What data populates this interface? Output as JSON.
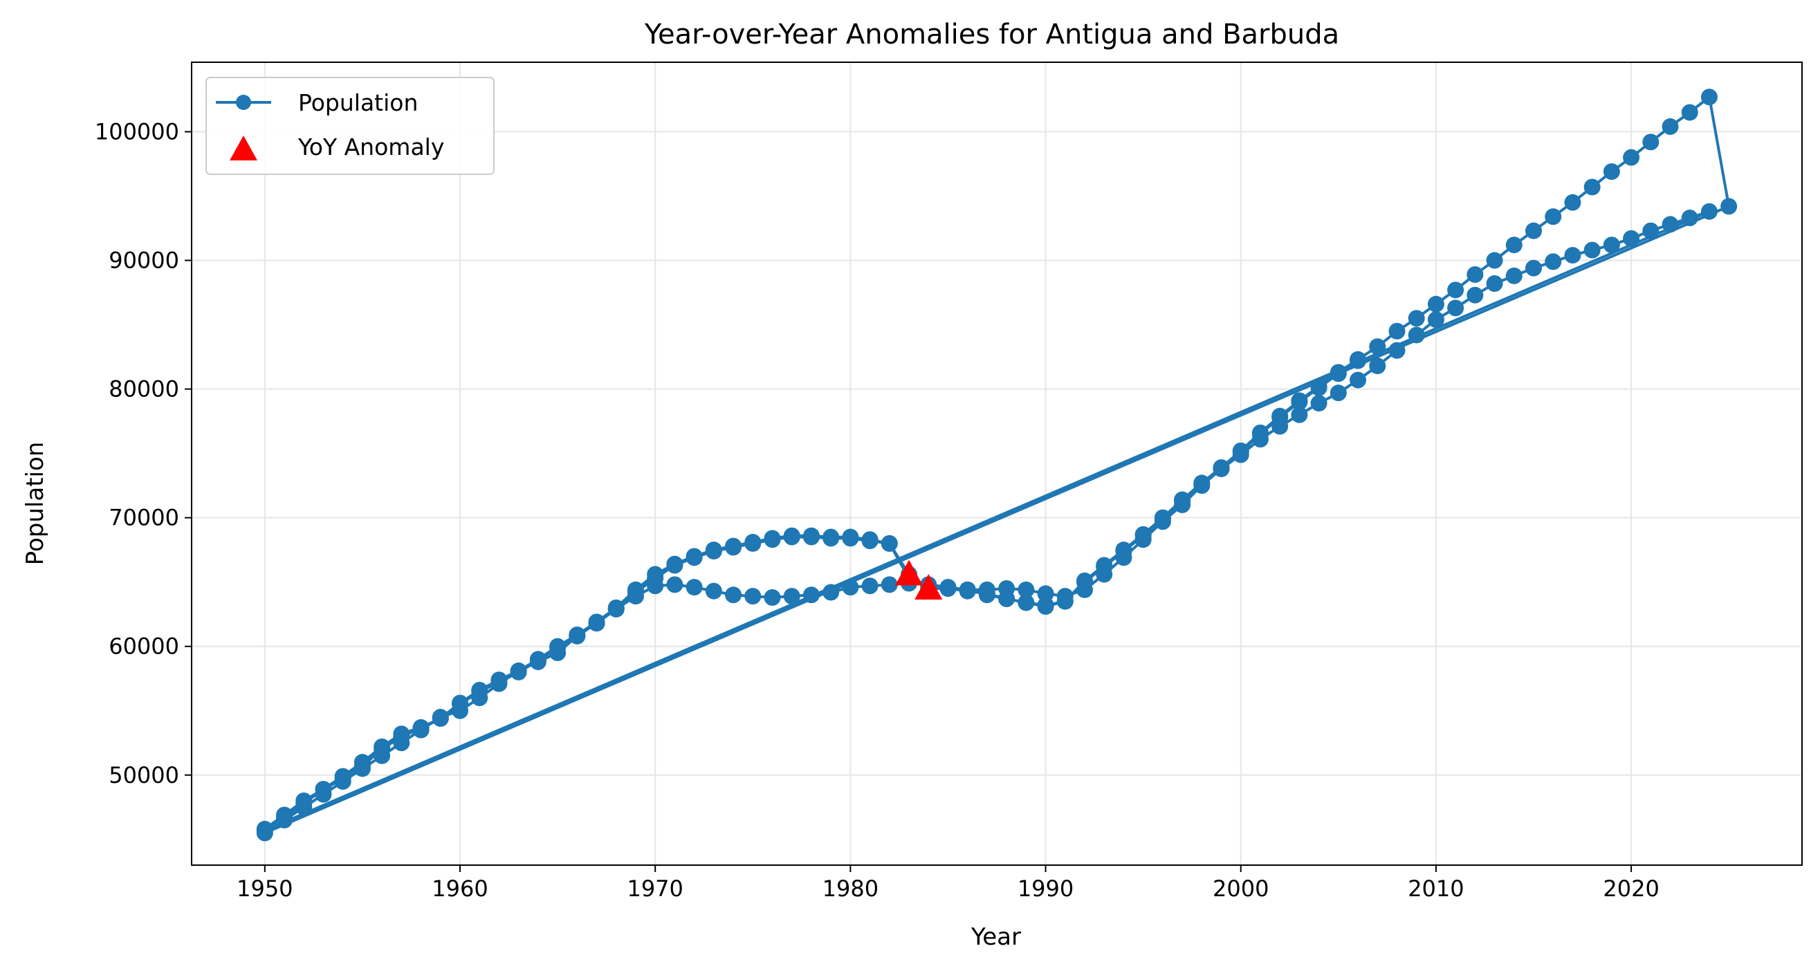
{
  "chart_data": {
    "type": "line",
    "title": "Year-over-Year Anomalies for Antigua and Barbuda",
    "xlabel": "Year",
    "ylabel": "Population",
    "xlim": [
      1946.25,
      2028.75
    ],
    "ylim": [
      43000,
      105400
    ],
    "x_ticks": [
      1950,
      1960,
      1970,
      1980,
      1990,
      2000,
      2010,
      2020
    ],
    "y_ticks": [
      50000,
      60000,
      70000,
      80000,
      90000,
      100000
    ],
    "grid": true,
    "legend_position": "top-left",
    "colors": {
      "line": "#1f77b4",
      "anomaly": "#ff0000",
      "grid": "#e6e6e6"
    },
    "series": [
      {
        "name": "Population",
        "marker": "circle",
        "x": [
          1950,
          1951,
          1952,
          1953,
          1954,
          1955,
          1956,
          1957,
          1958,
          1959,
          1960,
          1961,
          1962,
          1963,
          1964,
          1965,
          1966,
          1967,
          1968,
          1969,
          1970,
          1971,
          1972,
          1973,
          1974,
          1975,
          1976,
          1977,
          1978,
          1979,
          1980,
          1981,
          1982,
          1983,
          1984,
          1985,
          1986,
          1987,
          1988,
          1989,
          1990,
          1991,
          1992,
          1993,
          1994,
          1995,
          1996,
          1997,
          1998,
          1999,
          2000,
          2001,
          2002,
          2003,
          2004,
          2005,
          2006,
          2007,
          2008,
          2009,
          2010,
          2011,
          2012,
          2013,
          2014,
          2015,
          2016,
          2017,
          2018,
          2019,
          2020,
          2021,
          2022,
          2023,
          2024,
          2025,
          1950,
          1951,
          1952,
          1953,
          1954,
          1955,
          1956,
          1957,
          1958,
          1959,
          1960,
          1961,
          1962,
          1963,
          1964,
          1965,
          1966,
          1967,
          1968,
          1969,
          1970,
          1971,
          1972,
          1973,
          1974,
          1975,
          1976,
          1977,
          1978,
          1979,
          1980,
          1981,
          1982,
          1983,
          1984,
          1985,
          1986,
          1987,
          1988,
          1989,
          1990,
          1991,
          1992,
          1993,
          1994,
          1995,
          1996,
          1997,
          1998,
          1999,
          2000,
          2001,
          2002,
          2003,
          2004,
          2005,
          2006,
          2007,
          2008,
          2009,
          2010,
          2011,
          2012,
          2013,
          2014,
          2015,
          2016,
          2017,
          2018,
          2019,
          2020,
          2021,
          2022,
          2023,
          2024,
          1950,
          1951,
          1952,
          1953,
          1954,
          1955,
          1956,
          1957,
          1958,
          1959,
          1960,
          1961,
          1962,
          1963,
          1964,
          1965,
          1966,
          1967,
          1968,
          1969,
          1970,
          1971,
          1972,
          1973,
          1974,
          1975,
          1976,
          1977,
          1978,
          1979,
          1980,
          1981,
          1982,
          1983,
          1984,
          1985,
          1986,
          1987,
          1988,
          1989,
          1990,
          1991,
          1992,
          1993,
          1994,
          1995,
          1996,
          1997,
          1998,
          1999,
          2000,
          2001,
          2002,
          2003,
          2004,
          2005,
          2006
        ],
        "y": [
          45800,
          46900,
          48000,
          48900,
          49900,
          51000,
          52200,
          53200,
          53700,
          54400,
          55600,
          56600,
          57400,
          58100,
          59000,
          60000,
          60900,
          61900,
          63000,
          64400,
          65600,
          66400,
          67000,
          67500,
          67800,
          68100,
          68400,
          68600,
          68600,
          68500,
          68500,
          68300,
          68000,
          65300,
          64600,
          64500,
          64300,
          64100,
          63700,
          63400,
          63200,
          63500,
          65100,
          66300,
          67500,
          68700,
          70000,
          71400,
          72700,
          73900,
          75200,
          76600,
          77900,
          79100,
          80200,
          81300,
          82300,
          83300,
          84500,
          85500,
          86600,
          87700,
          88900,
          90000,
          91200,
          92300,
          93400,
          94500,
          95700,
          96900,
          98000,
          99200,
          100400,
          101500,
          102700,
          94200,
          45500,
          46500,
          47500,
          48500,
          49500,
          50500,
          51500,
          52500,
          53500,
          54500,
          55000,
          56000,
          57100,
          58100,
          58800,
          59500,
          60800,
          61800,
          62900,
          63900,
          64700,
          64800,
          64600,
          64300,
          64000,
          63900,
          63800,
          63900,
          64000,
          64200,
          64600,
          64700,
          64800,
          64900,
          64800,
          64600,
          64400,
          64400,
          64500,
          64400,
          64100,
          63900,
          64400,
          65600,
          66900,
          68300,
          69700,
          71000,
          72500,
          73800,
          74900,
          76100,
          77100,
          78000,
          78900,
          79700,
          80700,
          81800,
          83000,
          84200,
          85400,
          86300,
          87300,
          88200,
          88800,
          89400,
          89900,
          90400,
          90800,
          91200,
          91700,
          92300,
          92800,
          93300,
          93800,
          45700,
          46700,
          47800,
          48900,
          49700,
          50700,
          52000,
          53000,
          53600,
          54400,
          55500,
          56500,
          57200,
          58000,
          58900,
          59900,
          60800,
          61800,
          62900,
          64200,
          65300,
          66300,
          66900,
          67400,
          67700,
          68000,
          68300,
          68500,
          68500,
          68400,
          68400,
          68200,
          68000,
          65600,
          64500,
          64500,
          64400,
          64000,
          63700,
          63400,
          63100,
          63500,
          65000,
          66200,
          67400,
          68600,
          69900,
          71300,
          72600,
          73800,
          75100,
          76500,
          77800,
          79000,
          80100,
          81200,
          82200
        ]
      },
      {
        "name": "YoY Anomaly",
        "marker": "triangle",
        "x": [
          1983,
          1984
        ],
        "y": [
          65600,
          64500
        ]
      }
    ]
  }
}
